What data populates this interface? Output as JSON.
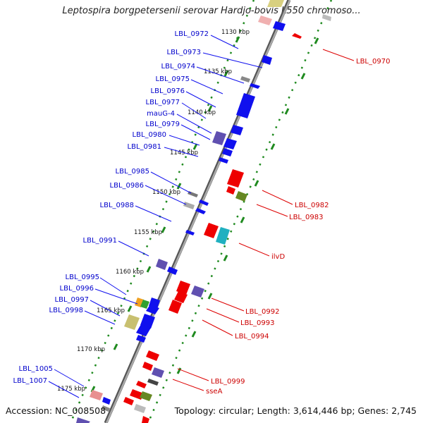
{
  "header": {
    "title": "Leptospira borgpetersenii serovar Hardjo-bovis L550 chromoso..."
  },
  "footer": {
    "accession": "Accession: NC_008508",
    "topology": "Topology: circular; Length: 3,614,446 bp; Genes: 2,745"
  },
  "colors": {
    "backbone": "#8a8a8a",
    "scale_dots": "#1f8a1f",
    "forward_label": "#0000cc",
    "reverse_label": "#cc0000"
  },
  "scale_ticks": [
    "1130 kbp",
    "1135 kbp",
    "1140 kbp",
    "1145 kbp",
    "1150 kbp",
    "1155 kbp",
    "1160 kbp",
    "1165 kbp",
    "1170 kbp",
    "1175 kbp"
  ],
  "genes": {
    "forward": [
      {
        "name": "LBL_0972"
      },
      {
        "name": "LBL_0973"
      },
      {
        "name": "LBL_0974"
      },
      {
        "name": "LBL_0975"
      },
      {
        "name": "LBL_0976"
      },
      {
        "name": "LBL_0977"
      },
      {
        "name": "mauG-4"
      },
      {
        "name": "LBL_0979"
      },
      {
        "name": "LBL_0980"
      },
      {
        "name": "LBL_0981"
      },
      {
        "name": "LBL_0985"
      },
      {
        "name": "LBL_0986"
      },
      {
        "name": "LBL_0988"
      },
      {
        "name": "LBL_0991"
      },
      {
        "name": "LBL_0995"
      },
      {
        "name": "LBL_0996"
      },
      {
        "name": "LBL_0997"
      },
      {
        "name": "LBL_0998"
      },
      {
        "name": "LBL_1005"
      },
      {
        "name": "LBL_1007"
      }
    ],
    "reverse": [
      {
        "name": "LBL_0970"
      },
      {
        "name": "LBL_0982"
      },
      {
        "name": "LBL_0983"
      },
      {
        "name": "ilvD"
      },
      {
        "name": "LBL_0992"
      },
      {
        "name": "LBL_0993"
      },
      {
        "name": "LBL_0994"
      },
      {
        "name": "LBL_0999"
      },
      {
        "name": "sseA"
      }
    ]
  }
}
